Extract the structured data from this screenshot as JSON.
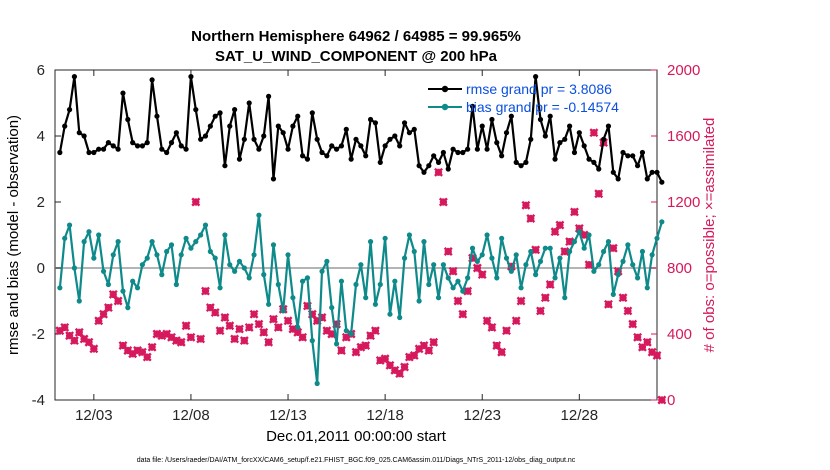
{
  "chart_data": {
    "type": "line",
    "title": "Northern Hemisphere 64962 / 64985 = 99.965%",
    "subtitle": "SAT_U_WIND_COMPONENT @ 200 hPa",
    "xlabel": "Dec.01,2011 00:00:00 start",
    "ylabel_left": "rmse and bias (model - observation)",
    "ylabel_right": "# of obs: o=possible; ×=assimilated",
    "footnote": "data file: /Users/raeder/DAI/ATM_forcXX/CAM6_setup/f.e21.FHIST_BGC.f09_025.CAM6assim.011/Diags_NTrS_2011-12/obs_diag_output.nc",
    "xlim": [
      0,
      124
    ],
    "ylim_left": [
      -4,
      6
    ],
    "ylim_right": [
      0,
      2000
    ],
    "x_ticks": [
      {
        "pos": 8,
        "label": "12/03"
      },
      {
        "pos": 28,
        "label": "12/08"
      },
      {
        "pos": 48,
        "label": "12/13"
      },
      {
        "pos": 68,
        "label": "12/18"
      },
      {
        "pos": 88,
        "label": "12/23"
      },
      {
        "pos": 108,
        "label": "12/28"
      }
    ],
    "y_ticks_left": [
      "-4",
      "-2",
      "0",
      "2",
      "4",
      "6"
    ],
    "y_ticks_right": [
      "0",
      "400",
      "800",
      "1200",
      "1600",
      "2000"
    ],
    "zero_line": 0,
    "colors": {
      "rmse": "#000000",
      "bias": "#0e8a8a",
      "obs": "#d6185c",
      "legend_text": "#0a4fe0",
      "zero_line": "#b4b4b4"
    },
    "series": [
      {
        "name": "rmse",
        "legend": "rmse grand pr = 3.8086",
        "axis": "left",
        "values": [
          3.5,
          4.3,
          4.8,
          5.8,
          4.1,
          4.0,
          3.5,
          3.5,
          3.6,
          3.6,
          3.8,
          3.7,
          3.6,
          5.3,
          4.5,
          3.8,
          3.7,
          3.7,
          3.8,
          5.7,
          4.6,
          3.6,
          3.5,
          3.8,
          4.1,
          3.7,
          3.6,
          5.8,
          4.8,
          3.9,
          4.0,
          4.3,
          4.6,
          4.7,
          3.1,
          4.3,
          4.8,
          3.3,
          3.9,
          5.0,
          3.9,
          3.6,
          4.0,
          5.2,
          2.7,
          4.3,
          4.1,
          3.6,
          4.3,
          4.6,
          3.4,
          3.3,
          4.7,
          3.9,
          3.5,
          3.4,
          3.7,
          3.6,
          3.7,
          4.2,
          3.3,
          3.9,
          3.7,
          3.4,
          4.5,
          4.4,
          3.2,
          3.7,
          3.9,
          4.0,
          3.7,
          4.4,
          4.1,
          4.2,
          3.1,
          2.9,
          3.1,
          3.4,
          3.2,
          3.5,
          3.0,
          3.6,
          3.5,
          3.5,
          3.6,
          4.9,
          3.6,
          4.3,
          3.6,
          4.5,
          3.8,
          3.4,
          4.1,
          4.6,
          3.2,
          3.1,
          3.2,
          3.9,
          5.8,
          4.5,
          4.0,
          4.6,
          3.3,
          3.8,
          3.9,
          4.3,
          3.5,
          4.1,
          3.7,
          3.3,
          3.2,
          3.0,
          3.9,
          4.3,
          2.9,
          2.7,
          3.5,
          3.4,
          3.4,
          3.1,
          3.5,
          2.7,
          2.9,
          2.9,
          2.6
        ],
        "source_values_note": "sequence continues in markup values below"
      },
      {
        "name": "bias",
        "legend": "bias grand pr = -0.14574",
        "axis": "left",
        "values": []
      },
      {
        "name": "obs_assimilated",
        "axis": "right",
        "values": []
      }
    ]
  }
}
